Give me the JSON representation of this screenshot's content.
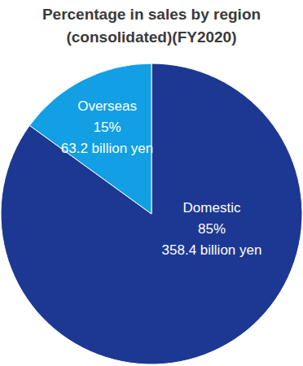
{
  "chart_data": {
    "type": "pie",
    "title": [
      "Percentage in sales by region",
      "(consolidated)(FY2020)"
    ],
    "categories": [
      "Domestic",
      "Overseas"
    ],
    "values": [
      85,
      15
    ],
    "value_labels": [
      "85%",
      "15%"
    ],
    "amount_labels": [
      "358.4 billion yen",
      "63.2 billion yen"
    ],
    "colors": [
      "#1d3893",
      "#129fe4"
    ],
    "data_labels": true
  }
}
